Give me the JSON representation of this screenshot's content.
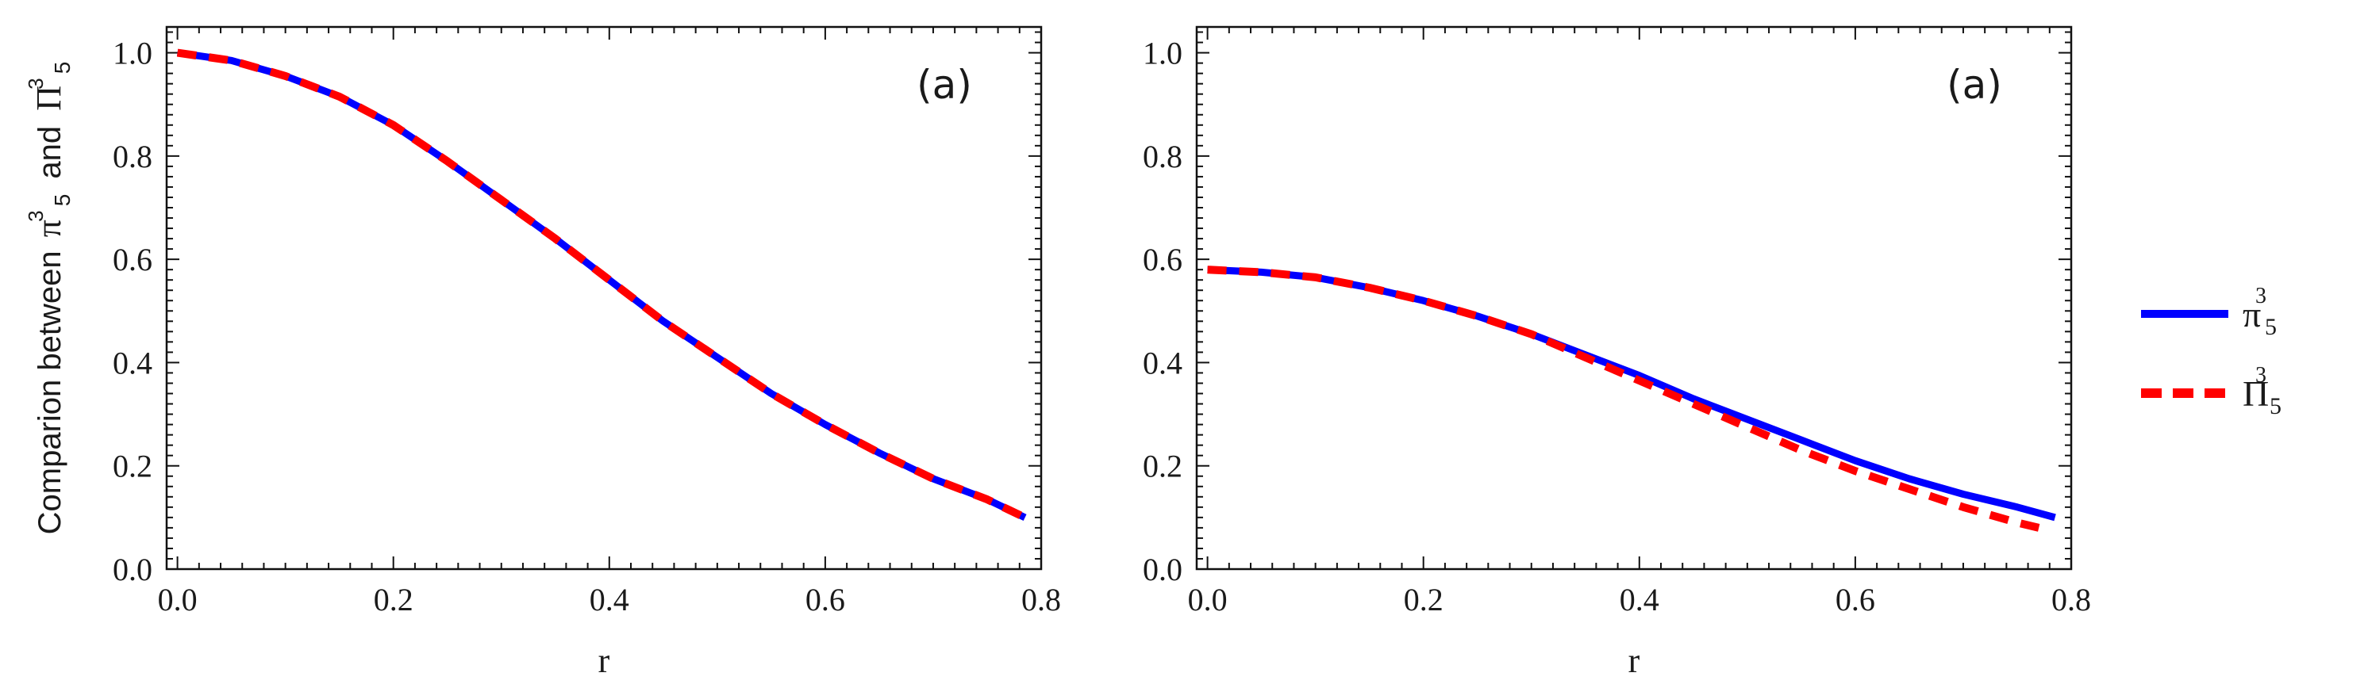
{
  "chart_data": [
    {
      "type": "line",
      "panel_label": "(a)",
      "xlabel": "r",
      "ylabel": "Comparion between",
      "ylabel_symbol_a": "π",
      "ylabel_connector": "and",
      "ylabel_symbol_b": "Π",
      "ylabel_sup": "3",
      "ylabel_sub": "5",
      "xlim": [
        -0.01,
        0.8
      ],
      "ylim": [
        0,
        1.05
      ],
      "xticks": [
        "0.0",
        "0.2",
        "0.4",
        "0.6",
        "0.8"
      ],
      "yticks": [
        "0.0",
        "0.2",
        "0.4",
        "0.6",
        "0.8",
        "1.0"
      ],
      "series": [
        {
          "name": "pi_5^3",
          "color": "#0000ff",
          "style": "solid",
          "x": [
            0.0,
            0.05,
            0.1,
            0.15,
            0.2,
            0.25,
            0.3,
            0.35,
            0.4,
            0.45,
            0.5,
            0.55,
            0.6,
            0.65,
            0.7,
            0.75,
            0.785
          ],
          "y": [
            1.0,
            0.985,
            0.955,
            0.915,
            0.86,
            0.79,
            0.715,
            0.64,
            0.56,
            0.48,
            0.41,
            0.34,
            0.28,
            0.225,
            0.175,
            0.135,
            0.1
          ]
        },
        {
          "name": "Pi_5^3",
          "color": "#ff0000",
          "style": "dashed",
          "x": [
            0.0,
            0.05,
            0.1,
            0.15,
            0.2,
            0.25,
            0.3,
            0.35,
            0.4,
            0.45,
            0.5,
            0.55,
            0.6,
            0.65,
            0.7,
            0.75,
            0.785
          ],
          "y": [
            1.0,
            0.985,
            0.955,
            0.915,
            0.86,
            0.79,
            0.715,
            0.64,
            0.56,
            0.48,
            0.41,
            0.34,
            0.28,
            0.225,
            0.175,
            0.135,
            0.1
          ]
        }
      ]
    },
    {
      "type": "line",
      "panel_label": "(a)",
      "xlabel": "r",
      "xlim": [
        -0.01,
        0.8
      ],
      "ylim": [
        0,
        1.05
      ],
      "xticks": [
        "0.0",
        "0.2",
        "0.4",
        "0.6",
        "0.8"
      ],
      "yticks": [
        "0.0",
        "0.2",
        "0.4",
        "0.6",
        "0.8",
        "1.0"
      ],
      "series": [
        {
          "name": "pi_5^3",
          "color": "#0000ff",
          "style": "solid",
          "x": [
            0.0,
            0.05,
            0.1,
            0.15,
            0.2,
            0.25,
            0.3,
            0.35,
            0.4,
            0.45,
            0.5,
            0.55,
            0.6,
            0.65,
            0.7,
            0.75,
            0.785
          ],
          "y": [
            0.58,
            0.575,
            0.565,
            0.545,
            0.52,
            0.49,
            0.455,
            0.415,
            0.375,
            0.33,
            0.29,
            0.25,
            0.21,
            0.175,
            0.145,
            0.12,
            0.1
          ]
        },
        {
          "name": "Pi_5^3",
          "color": "#ff0000",
          "style": "dashed",
          "x": [
            0.0,
            0.05,
            0.1,
            0.15,
            0.2,
            0.25,
            0.3,
            0.35,
            0.4,
            0.45,
            0.5,
            0.55,
            0.6,
            0.65,
            0.7,
            0.75,
            0.77
          ],
          "y": [
            0.58,
            0.575,
            0.565,
            0.545,
            0.52,
            0.49,
            0.455,
            0.41,
            0.365,
            0.32,
            0.275,
            0.23,
            0.19,
            0.155,
            0.12,
            0.09,
            0.08
          ]
        }
      ]
    }
  ],
  "legend": {
    "placement": "right",
    "items": [
      {
        "symbol": "π",
        "sup": "3",
        "sub": "5",
        "color": "#0000ff",
        "style": "solid"
      },
      {
        "symbol": "Π",
        "sup": "3",
        "sub": "5",
        "color": "#ff0000",
        "style": "dashed"
      }
    ]
  }
}
